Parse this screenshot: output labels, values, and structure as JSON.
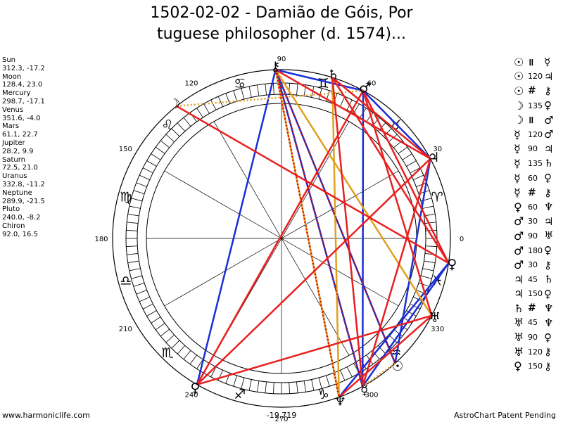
{
  "title": {
    "line1": "1502-02-02 - Damião de Góis, Por",
    "line2": "tuguese philosopher (d. 1574)..."
  },
  "planets": [
    {
      "name": "Sun",
      "coords": "312.3, -17.2"
    },
    {
      "name": "Moon",
      "coords": "128.4, 23.0"
    },
    {
      "name": "Mercury",
      "coords": "298.7, -17.1"
    },
    {
      "name": "Venus",
      "coords": "351.6, -4.0"
    },
    {
      "name": "Mars",
      "coords": "61.1, 22.7"
    },
    {
      "name": "Jupiter",
      "coords": "28.2, 9.9"
    },
    {
      "name": "Saturn",
      "coords": "72.5, 21.0"
    },
    {
      "name": "Uranus",
      "coords": "332.8, -11.2"
    },
    {
      "name": "Neptune",
      "coords": "289.9, -21.5"
    },
    {
      "name": "Pluto",
      "coords": "240.0, -8.2"
    },
    {
      "name": "Chiron",
      "coords": "92.0, 16.5"
    }
  ],
  "aspects": [
    {
      "p1": "☉",
      "sym": "॥",
      "p2": "☿"
    },
    {
      "p1": "☉",
      "sym": "120",
      "p2": "♃"
    },
    {
      "p1": "☉",
      "sym": "#",
      "p2": "⚷"
    },
    {
      "p1": "☽",
      "sym": "135",
      "p2": "♀"
    },
    {
      "p1": "☽",
      "sym": "॥",
      "p2": "♂"
    },
    {
      "p1": "☿",
      "sym": "120",
      "p2": "♂"
    },
    {
      "p1": "☿",
      "sym": "90",
      "p2": "♃"
    },
    {
      "p1": "☿",
      "sym": "135",
      "p2": "♄"
    },
    {
      "p1": "☿",
      "sym": "60",
      "p2": "♀"
    },
    {
      "p1": "☿",
      "sym": "#",
      "p2": "⚷"
    },
    {
      "p1": "♀",
      "sym": "60",
      "p2": "♆"
    },
    {
      "p1": "♂",
      "sym": "30",
      "p2": "♃"
    },
    {
      "p1": "♂",
      "sym": "90",
      "p2": "♅"
    },
    {
      "p1": "♂",
      "sym": "180",
      "p2": "♀"
    },
    {
      "p1": "♂",
      "sym": "30",
      "p2": "⚷"
    },
    {
      "p1": "♃",
      "sym": "45",
      "p2": "♄"
    },
    {
      "p1": "♃",
      "sym": "150",
      "p2": "♀"
    },
    {
      "p1": "♄",
      "sym": "#",
      "p2": "♆"
    },
    {
      "p1": "♅",
      "sym": "45",
      "p2": "♆"
    },
    {
      "p1": "♅",
      "sym": "90",
      "p2": "♀"
    },
    {
      "p1": "♅",
      "sym": "120",
      "p2": "⚷"
    },
    {
      "p1": "♀",
      "sym": "150",
      "p2": "⚷"
    }
  ],
  "chart": {
    "degree_labels": [
      "0",
      "30",
      "60",
      "90",
      "120",
      "150",
      "180",
      "210",
      "240",
      "270",
      "300",
      "330"
    ],
    "zodiac": [
      "♈",
      "♉",
      "♊",
      "♋",
      "♌",
      "♍",
      "♎",
      "♏",
      "♐",
      "♑",
      "♒",
      "♓"
    ],
    "bodies": [
      {
        "glyph": "☉",
        "lon": 312.3
      },
      {
        "glyph": "☽",
        "lon": 128.4
      },
      {
        "glyph": "☿",
        "lon": 298.7
      },
      {
        "glyph": "♀",
        "lon": 351.6
      },
      {
        "glyph": "♂",
        "lon": 61.1
      },
      {
        "glyph": "♃",
        "lon": 28.2
      },
      {
        "glyph": "♄",
        "lon": 72.5
      },
      {
        "glyph": "♅",
        "lon": 332.8
      },
      {
        "glyph": "♆",
        "lon": 289.9
      },
      {
        "glyph": "♀",
        "lon": 240.0
      },
      {
        "glyph": "⚷",
        "lon": 92.0
      }
    ],
    "aspect_lines": [
      {
        "from": 0,
        "to": 5,
        "color": "#1a2fd6",
        "dash": false
      },
      {
        "from": 0,
        "to": 10,
        "color": "#1a2fd6",
        "dash": false
      },
      {
        "from": 2,
        "to": 4,
        "color": "#1a2fd6",
        "dash": false
      },
      {
        "from": 2,
        "to": 3,
        "color": "#1a2fd6",
        "dash": false
      },
      {
        "from": 2,
        "to": 10,
        "color": "#1a2fd6",
        "dash": false
      },
      {
        "from": 3,
        "to": 8,
        "color": "#1a2fd6",
        "dash": false
      },
      {
        "from": 4,
        "to": 5,
        "color": "#1a2fd6",
        "dash": false
      },
      {
        "from": 4,
        "to": 10,
        "color": "#1a2fd6",
        "dash": false
      },
      {
        "from": 9,
        "to": 10,
        "color": "#1a2fd6",
        "dash": false
      },
      {
        "from": 1,
        "to": 4,
        "color": "#e0a020",
        "dash": true
      },
      {
        "from": 0,
        "to": 2,
        "color": "#e0a020",
        "dash": true
      },
      {
        "from": 8,
        "to": 10,
        "color": "#e0a020",
        "dash": false
      },
      {
        "from": 6,
        "to": 8,
        "color": "#e0a020",
        "dash": false
      },
      {
        "from": 7,
        "to": 10,
        "color": "#e0a020",
        "dash": false
      },
      {
        "from": 1,
        "to": 3,
        "color": "#e82020",
        "dash": false
      },
      {
        "from": 2,
        "to": 5,
        "color": "#e82020",
        "dash": false
      },
      {
        "from": 2,
        "to": 6,
        "color": "#e82020",
        "dash": false
      },
      {
        "from": 4,
        "to": 3,
        "color": "#e82020",
        "dash": false
      },
      {
        "from": 4,
        "to": 7,
        "color": "#e82020",
        "dash": false
      },
      {
        "from": 4,
        "to": 9,
        "color": "#e82020",
        "dash": false
      },
      {
        "from": 5,
        "to": 9,
        "color": "#e82020",
        "dash": false
      },
      {
        "from": 5,
        "to": 6,
        "color": "#e82020",
        "dash": false
      },
      {
        "from": 6,
        "to": 3,
        "color": "#e82020",
        "dash": false
      },
      {
        "from": 7,
        "to": 8,
        "color": "#e82020",
        "dash": false
      },
      {
        "from": 7,
        "to": 9,
        "color": "#e82020",
        "dash": false
      },
      {
        "from": 5,
        "to": 10,
        "color": "#e82020",
        "dash": false
      },
      {
        "from": 10,
        "to": 2,
        "color": "#d01010",
        "dash": true
      },
      {
        "from": 10,
        "to": 0,
        "color": "#d01010",
        "dash": true
      },
      {
        "from": 10,
        "to": 8,
        "color": "#d01010",
        "dash": true
      }
    ]
  },
  "footer": {
    "left": "www.harmoniclife.com",
    "center": "-19,719",
    "right": "AstroChart Patent Pending"
  }
}
